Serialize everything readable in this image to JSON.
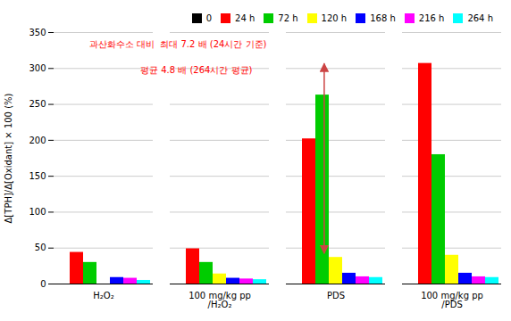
{
  "chart_data": {
    "type": "bar",
    "categories": [
      "H₂O₂",
      "100 mg/kg pp\n/H₂O₂",
      "PDS",
      "100 mg/kg pp\n/PDS"
    ],
    "series": [
      {
        "name": "0",
        "color": "#000000",
        "values": [
          0,
          0,
          0,
          0
        ]
      },
      {
        "name": "24 h",
        "color": "#ff0000",
        "values": [
          44,
          49,
          202,
          307
        ]
      },
      {
        "name": "72 h",
        "color": "#00cc00",
        "values": [
          30,
          30,
          263,
          180
        ]
      },
      {
        "name": "120 h",
        "color": "#ffff00",
        "values": [
          0,
          14,
          37,
          40
        ]
      },
      {
        "name": "168 h",
        "color": "#0000ff",
        "values": [
          9,
          8,
          15,
          15
        ]
      },
      {
        "name": "216 h",
        "color": "#ff00ff",
        "values": [
          8,
          7,
          10,
          10
        ]
      },
      {
        "name": "264 h",
        "color": "#00ffff",
        "values": [
          5,
          6,
          9,
          9
        ]
      }
    ],
    "ylabel": "Δ[TPH]/Δ[Oxidant] × 100 (%)",
    "ylim": [
      0,
      350
    ],
    "yticks": [
      0,
      50,
      100,
      150,
      200,
      250,
      300,
      350
    ],
    "annotations": [
      "과산화수소 대비  최대 7.2 배 (24시간 기준)",
      "             평균 4.8 배 (264시간 평균)"
    ],
    "annotation_color": "red",
    "grid": true,
    "legend": "upper right"
  }
}
